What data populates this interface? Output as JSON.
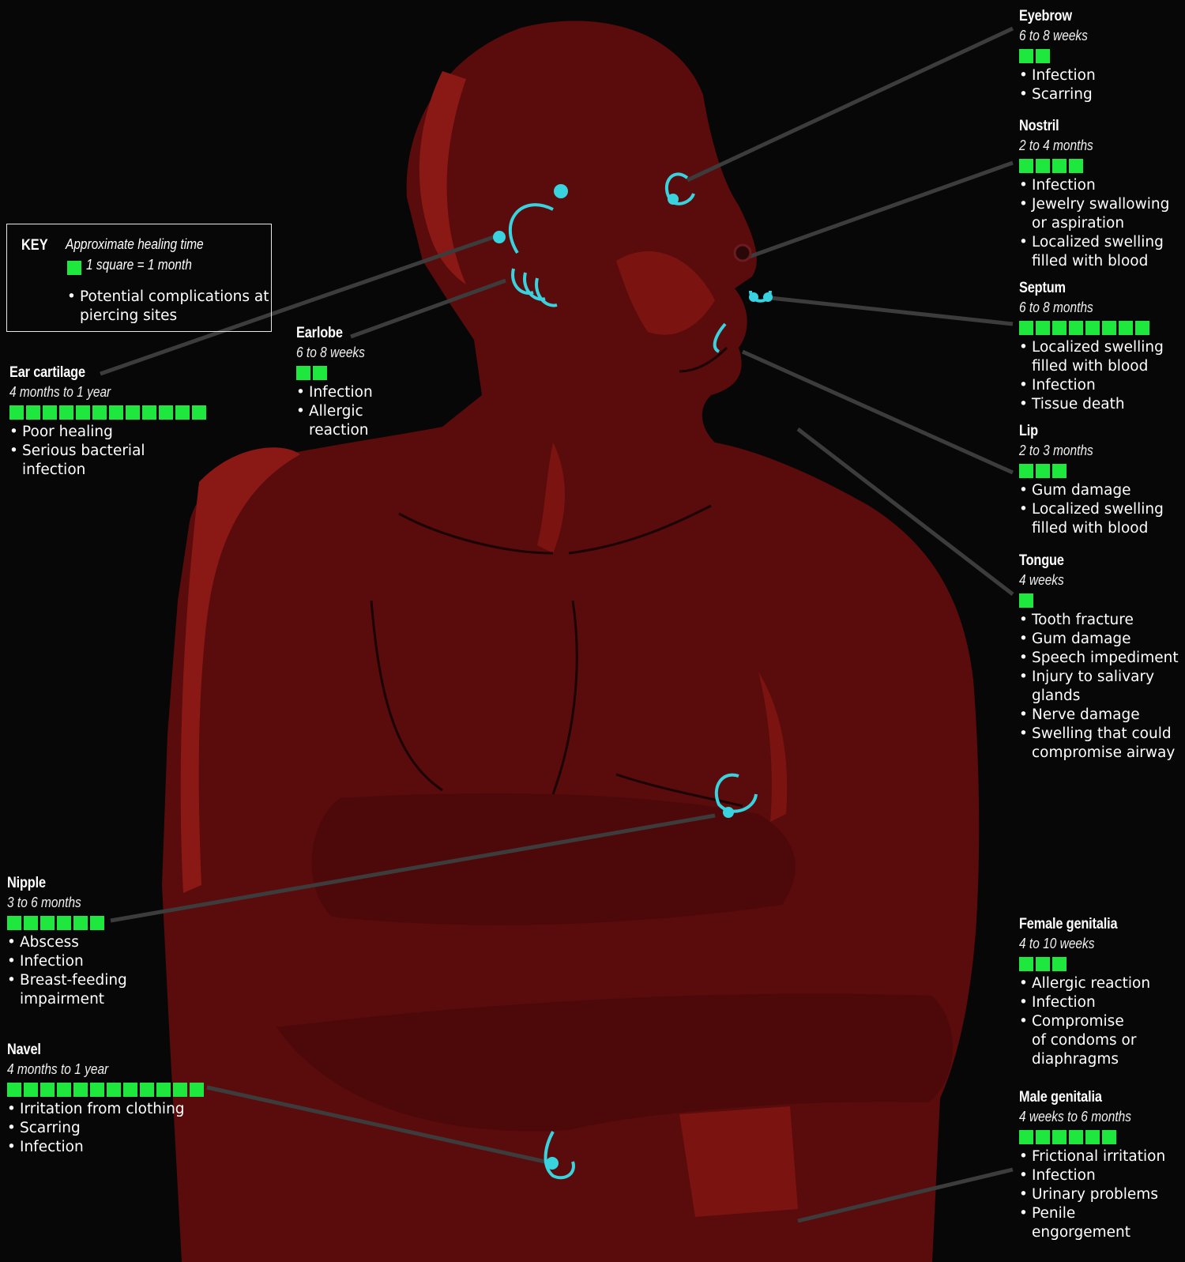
{
  "key": {
    "label": "KEY",
    "healing_time": "Approximate healing time",
    "unit": "1 square = 1 month",
    "complications": "Potential complications at piercing sites",
    "square_color": "#1ee83d"
  },
  "colors": {
    "body": "#5a0b0b",
    "highlight": "#8e1a16",
    "jewelry": "#39d3e0",
    "background": "#070707"
  },
  "sites": [
    {
      "id": "eyebrow",
      "title": "Eyebrow",
      "duration": "6 to 8 weeks",
      "squares": 2,
      "complications": [
        "Infection",
        "Scarring"
      ]
    },
    {
      "id": "nostril",
      "title": "Nostril",
      "duration": "2 to 4 months",
      "squares": 4,
      "complications": [
        "Infection",
        "Jewelry swallowing",
        "or aspiration",
        "Localized swelling",
        "filled with blood"
      ]
    },
    {
      "id": "septum",
      "title": "Septum",
      "duration": "6 to 8 months",
      "squares": 8,
      "complications": [
        "Localized swelling",
        "filled with blood",
        "Infection",
        "Tissue death"
      ]
    },
    {
      "id": "lip",
      "title": "Lip",
      "duration": "2 to 3 months",
      "squares": 3,
      "complications": [
        "Gum damage",
        "Localized swelling",
        "filled with blood"
      ]
    },
    {
      "id": "tongue",
      "title": "Tongue",
      "duration": "4 weeks",
      "squares": 1,
      "complications": [
        "Tooth fracture",
        "Gum damage",
        "Speech impediment",
        "Injury to salivary",
        "glands",
        "Nerve damage",
        "Swelling that could",
        "compromise airway"
      ]
    },
    {
      "id": "female-genitalia",
      "title": "Female genitalia",
      "duration": "4 to 10 weeks",
      "squares": 3,
      "complications": [
        "Allergic reaction",
        "Infection",
        "Compromise",
        "of condoms or",
        "diaphragms"
      ]
    },
    {
      "id": "male-genitalia",
      "title": "Male genitalia",
      "duration": "4 weeks to 6 months",
      "squares": 6,
      "complications": [
        "Frictional irritation",
        "Infection",
        "Urinary problems",
        "Penile",
        "engorgement"
      ]
    },
    {
      "id": "earlobe",
      "title": "Earlobe",
      "duration": "6 to 8 weeks",
      "squares": 2,
      "complications": [
        "Infection",
        "Allergic",
        "reaction"
      ]
    },
    {
      "id": "ear-cartilage",
      "title": "Ear cartilage",
      "duration": "4 months to 1 year",
      "squares": 12,
      "complications": [
        "Poor healing",
        "Serious bacterial",
        "infection"
      ]
    },
    {
      "id": "nipple",
      "title": "Nipple",
      "duration": "3 to 6 months",
      "squares": 6,
      "complications": [
        "Abscess",
        "Infection",
        "Breast-feeding",
        "impairment"
      ]
    },
    {
      "id": "navel",
      "title": "Navel",
      "duration": "4 months to 1 year",
      "squares": 12,
      "complications": [
        "Irritation from clothing",
        "Scarring",
        "Infection"
      ]
    }
  ]
}
